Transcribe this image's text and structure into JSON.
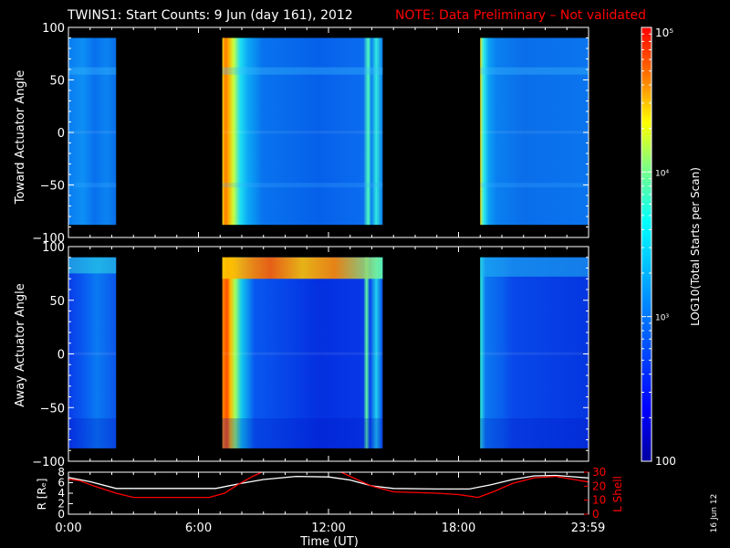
{
  "title": {
    "main": "TWINS1: Start Counts:  9 Jun (day 161), 2012",
    "note": "NOTE: Data Preliminary – Not validated",
    "note_color": "#ff0000"
  },
  "side_date": "16 Jun 12",
  "chart_data": [
    {
      "type": "heatmap",
      "panel": "top",
      "ylabel": "Toward Actuator Angle",
      "ylim": [
        -100,
        100
      ],
      "yticks": [
        "100",
        "50",
        "0",
        "−50",
        "−100"
      ],
      "ytick_values": [
        100,
        50,
        0,
        -50,
        -100
      ],
      "angle_range": [
        -88,
        90
      ],
      "x_unit": "hours UT",
      "xlim": [
        0,
        24
      ],
      "data_intervals": [
        [
          0.0,
          2.2
        ],
        [
          7.1,
          14.5
        ],
        [
          19.0,
          23.98
        ]
      ]
    },
    {
      "type": "heatmap",
      "panel": "middle",
      "ylabel": "Away Actuator Angle",
      "ylim": [
        -100,
        100
      ],
      "yticks": [
        "100",
        "50",
        "0",
        "−50",
        "−100"
      ],
      "ytick_values": [
        100,
        50,
        0,
        -50,
        -100
      ],
      "angle_range": [
        -88,
        90
      ],
      "x_unit": "hours UT",
      "xlim": [
        0,
        24
      ],
      "data_intervals": [
        [
          0.0,
          2.2
        ],
        [
          7.1,
          14.5
        ],
        [
          19.0,
          23.98
        ]
      ]
    },
    {
      "type": "line",
      "panel": "bottom",
      "xlabel": "Time (UT)",
      "xticks": [
        "0:00",
        "6:00",
        "12:00",
        "18:00",
        "23:59"
      ],
      "xtick_values": [
        0,
        6,
        12,
        18,
        23.98
      ],
      "xlim": [
        0,
        24
      ],
      "ylabel_left": "R [Rₑ]",
      "ylim_left": [
        0,
        8
      ],
      "yticks_left": [
        "8",
        "6",
        "4",
        "2",
        "0"
      ],
      "ytick_values_left": [
        8,
        6,
        4,
        2,
        0
      ],
      "ylabel_right": "L Shell",
      "ylim_right": [
        0,
        30
      ],
      "yticks_right": [
        "30",
        "20",
        "10",
        "0"
      ],
      "ytick_values_right": [
        30,
        20,
        10,
        0
      ],
      "series": [
        {
          "name": "R",
          "axis": "left",
          "color": "#ffffff",
          "x": [
            0,
            1,
            2.2,
            3,
            5,
            6.8,
            8,
            9,
            10.5,
            12,
            13,
            14,
            15,
            17,
            18.5,
            19.5,
            20.5,
            21.5,
            22.5,
            23.98
          ],
          "y": [
            7.0,
            6.2,
            4.9,
            4.9,
            4.9,
            4.9,
            5.9,
            6.6,
            7.2,
            7.1,
            6.5,
            5.4,
            4.9,
            4.8,
            4.8,
            5.6,
            6.6,
            7.3,
            7.4,
            6.9
          ]
        },
        {
          "name": "L Shell",
          "axis": "right",
          "color": "#ff0000",
          "x": [
            0,
            0.5,
            1.2,
            2.2,
            3,
            5,
            6.5,
            7.2,
            7.8,
            8.5,
            9.2,
            12.3,
            13,
            14,
            15,
            17,
            18,
            18.9,
            19.6,
            20.5,
            21.5,
            22.5,
            23.98
          ],
          "y": [
            25,
            24,
            20,
            15,
            12,
            12,
            12,
            15,
            21,
            27,
            32,
            32,
            27,
            20,
            16,
            15,
            14,
            12,
            16,
            22,
            26,
            27,
            23
          ]
        }
      ]
    },
    {
      "type": "colorbar",
      "label": "LOG10(Total Starts per Scan)",
      "scale": "log",
      "range": [
        100,
        100000
      ],
      "ticks": [
        "10⁵",
        "10⁴",
        "10³",
        "100"
      ],
      "tick_values": [
        100000,
        10000,
        1000,
        100
      ],
      "colormap": [
        "#0000a0",
        "#0000ff",
        "#0080ff",
        "#00ffff",
        "#80ff80",
        "#ffff00",
        "#ff8000",
        "#ff0000"
      ]
    }
  ]
}
